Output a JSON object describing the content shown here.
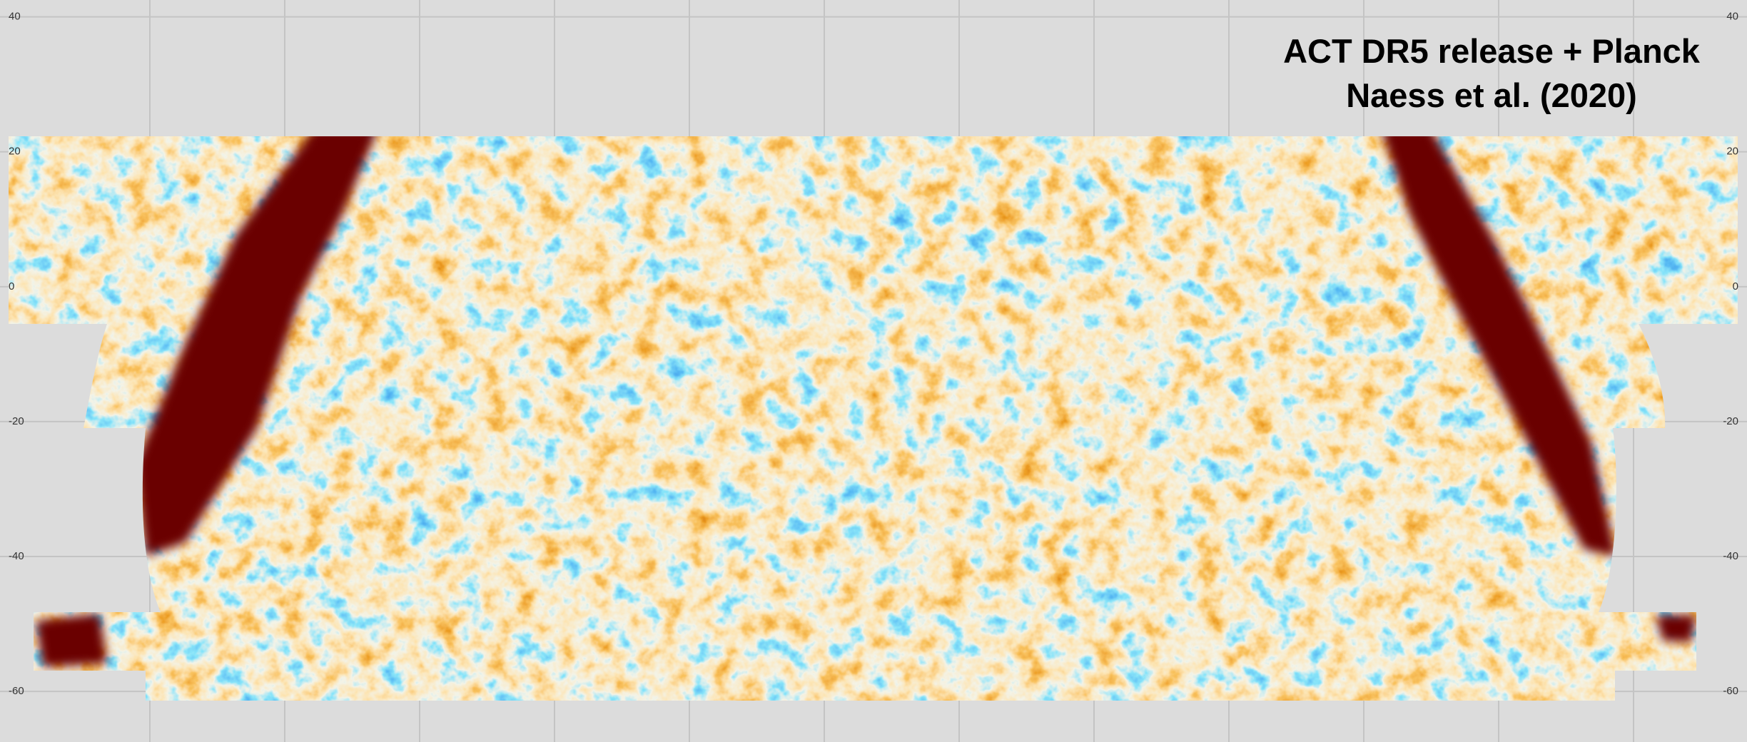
{
  "title": [
    "ACT DR5 release + Planck",
    "Naess et al. (2020)"
  ],
  "dec_axis": {
    "lim": [
      42.5,
      -67.5
    ],
    "ticks": [
      40,
      20,
      0,
      -20,
      -40,
      -60
    ]
  }
}
